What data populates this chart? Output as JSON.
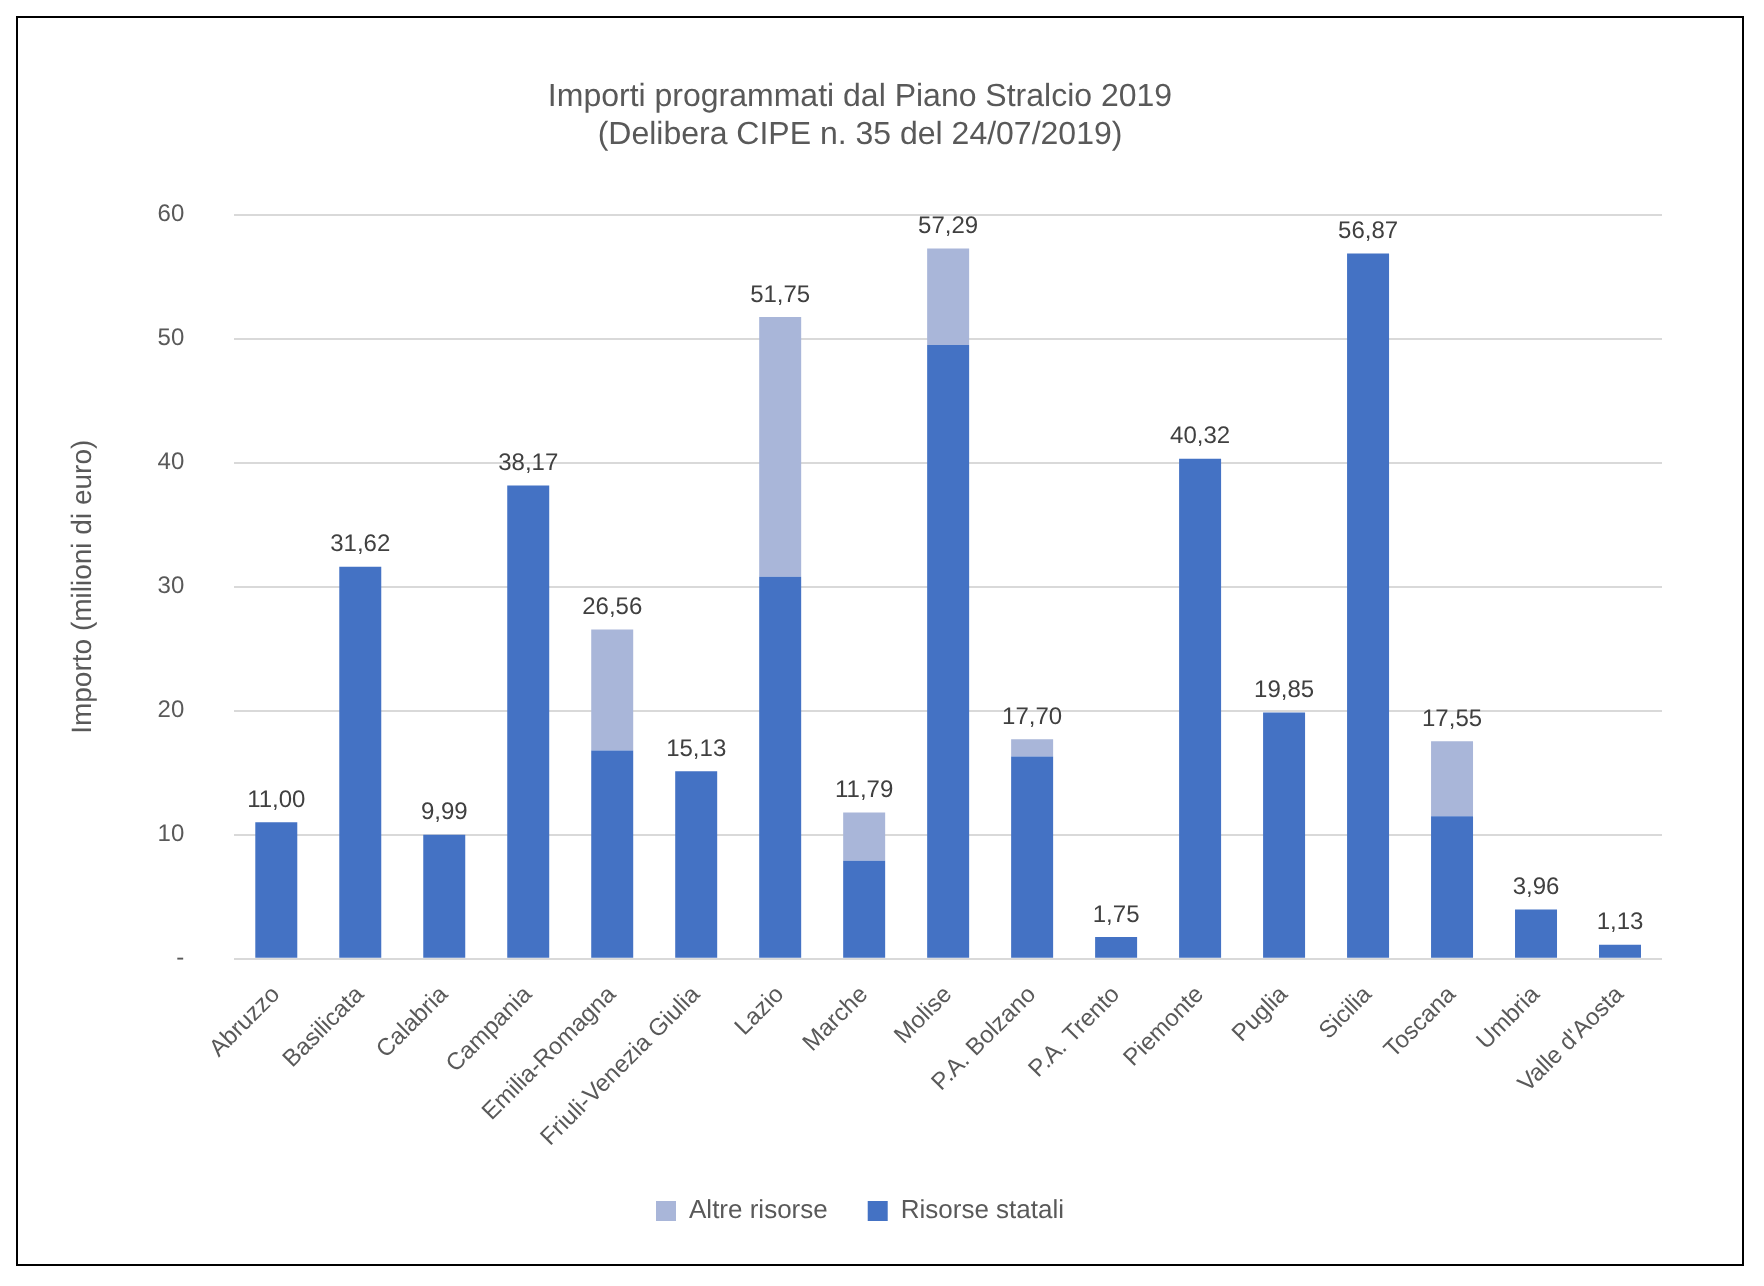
{
  "chart_data": {
    "type": "bar",
    "title": [
      "Importi programmati dal Piano Stralcio 2019",
      "(Delibera CIPE n. 35 del 24/07/2019)"
    ],
    "ylabel": "Importo (milioni di euro)",
    "categories": [
      "Abruzzo",
      "Basilicata",
      "Calabria",
      "Campania",
      "Emilia-Romagna",
      "Friuli-Venezia Giulia",
      "Lazio",
      "Marche",
      "Molise",
      "P.A. Bolzano",
      "P.A. Trento",
      "Piemonte",
      "Puglia",
      "Sicilia",
      "Toscana",
      "Umbria",
      "Valle d'Aosta"
    ],
    "stacked": true,
    "series": [
      {
        "name": "Risorse statali",
        "color": "#4472c4",
        "values": [
          11.0,
          31.62,
          9.99,
          38.17,
          16.8,
          15.13,
          30.8,
          7.9,
          49.5,
          16.3,
          1.75,
          40.32,
          19.85,
          56.87,
          11.5,
          3.96,
          1.13
        ]
      },
      {
        "name": "Altre risorse",
        "color": "#a9b6d9",
        "values": [
          null,
          null,
          null,
          null,
          9.76,
          null,
          20.95,
          3.89,
          7.79,
          1.4,
          null,
          null,
          null,
          null,
          6.05,
          null,
          null
        ]
      }
    ],
    "totals": [
      "11,00",
      "31,62",
      "9,99",
      "38,17",
      "26,56",
      "15,13",
      "51,75",
      "11,79",
      "57,29",
      "17,70",
      "1,75",
      "40,32",
      "19,85",
      "56,87",
      "17,55",
      "3,96",
      "1,13"
    ],
    "ylim": [
      0,
      60
    ],
    "yticks": [
      {
        "value": 0,
        "label": "-"
      },
      10,
      20,
      30,
      40,
      50,
      60
    ],
    "grid": "y",
    "legend": "bottom"
  }
}
